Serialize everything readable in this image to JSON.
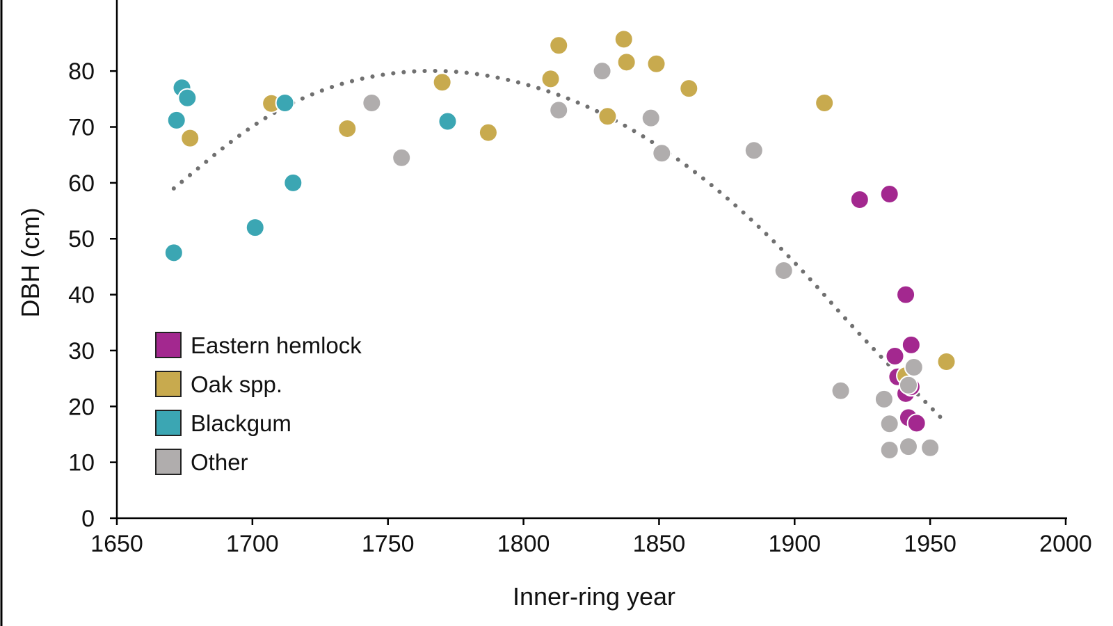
{
  "chart_data": {
    "type": "scatter",
    "xlabel": "Inner-ring year",
    "ylabel": "DBH (cm)",
    "xlim": [
      1650,
      2000
    ],
    "ylim": [
      0,
      85
    ],
    "xticks": [
      "1650",
      "1700",
      "1750",
      "1800",
      "1850",
      "1900",
      "1950",
      "2000"
    ],
    "yticks": [
      "0",
      "10",
      "20",
      "30",
      "40",
      "50",
      "60",
      "70",
      "80"
    ],
    "grid": false,
    "legend_position": "left-center",
    "series": [
      {
        "name": "Eastern hemlock",
        "color": "#a3288f",
        "points": [
          [
            1924,
            57
          ],
          [
            1935,
            58
          ],
          [
            1941,
            40
          ],
          [
            1943,
            31
          ],
          [
            1937,
            29
          ],
          [
            1938,
            25.3
          ],
          [
            1941,
            22.3
          ],
          [
            1943,
            23.5
          ],
          [
            1942,
            18
          ],
          [
            1945,
            17
          ]
        ]
      },
      {
        "name": "Oak spp.",
        "color": "#c8aa4e",
        "points": [
          [
            1677,
            68
          ],
          [
            1707,
            74.2
          ],
          [
            1735,
            69.7
          ],
          [
            1770,
            78
          ],
          [
            1787,
            69
          ],
          [
            1810,
            78.6
          ],
          [
            1813,
            84.6
          ],
          [
            1831,
            71.9
          ],
          [
            1837,
            85.7
          ],
          [
            1838,
            81.6
          ],
          [
            1849,
            81.3
          ],
          [
            1861,
            76.9
          ],
          [
            1911,
            74.3
          ],
          [
            1956,
            28
          ],
          [
            1941,
            25.5
          ]
        ]
      },
      {
        "name": "Blackgum",
        "color": "#3ba6b3",
        "points": [
          [
            1674,
            77
          ],
          [
            1676,
            75.2
          ],
          [
            1672,
            71.2
          ],
          [
            1712,
            74.3
          ],
          [
            1772,
            71
          ],
          [
            1715,
            60
          ],
          [
            1701,
            52
          ],
          [
            1671,
            47.5
          ]
        ]
      },
      {
        "name": "Other",
        "color": "#b0adad",
        "points": [
          [
            1744,
            74.3
          ],
          [
            1755,
            64.5
          ],
          [
            1813,
            73
          ],
          [
            1829,
            80
          ],
          [
            1847,
            71.6
          ],
          [
            1851,
            65.3
          ],
          [
            1885,
            65.8
          ],
          [
            1896,
            44.3
          ],
          [
            1917,
            22.8
          ],
          [
            1933,
            21.3
          ],
          [
            1935,
            16.9
          ],
          [
            1944,
            27
          ],
          [
            1942,
            23.8
          ],
          [
            1935,
            12.2
          ],
          [
            1942,
            12.8
          ],
          [
            1950,
            12.6
          ]
        ]
      }
    ],
    "trendline": {
      "style": "dotted",
      "color": "#707070",
      "points": [
        [
          1671,
          59
        ],
        [
          1700,
          70.6
        ],
        [
          1725,
          76.8
        ],
        [
          1750,
          79.8
        ],
        [
          1775,
          80.2
        ],
        [
          1800,
          78
        ],
        [
          1825,
          73.6
        ],
        [
          1850,
          66.8
        ],
        [
          1875,
          57.6
        ],
        [
          1900,
          46
        ],
        [
          1925,
          32.2
        ],
        [
          1956,
          17
        ]
      ]
    }
  }
}
